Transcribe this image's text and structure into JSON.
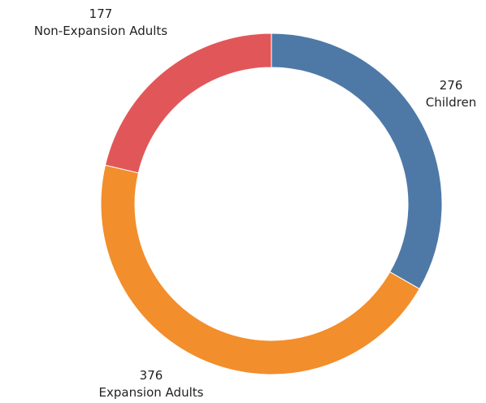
{
  "chart_data": {
    "type": "pie",
    "donut": true,
    "title": "",
    "slices": [
      {
        "name": "Children",
        "value": 276,
        "color": "#4e79a7"
      },
      {
        "name": "Expansion Adults",
        "value": 376,
        "color": "#f28e2b"
      },
      {
        "name": "Non-Expansion Adults",
        "value": 177,
        "color": "#e15759"
      }
    ],
    "legend": "none",
    "labels": "outside, value above name"
  }
}
